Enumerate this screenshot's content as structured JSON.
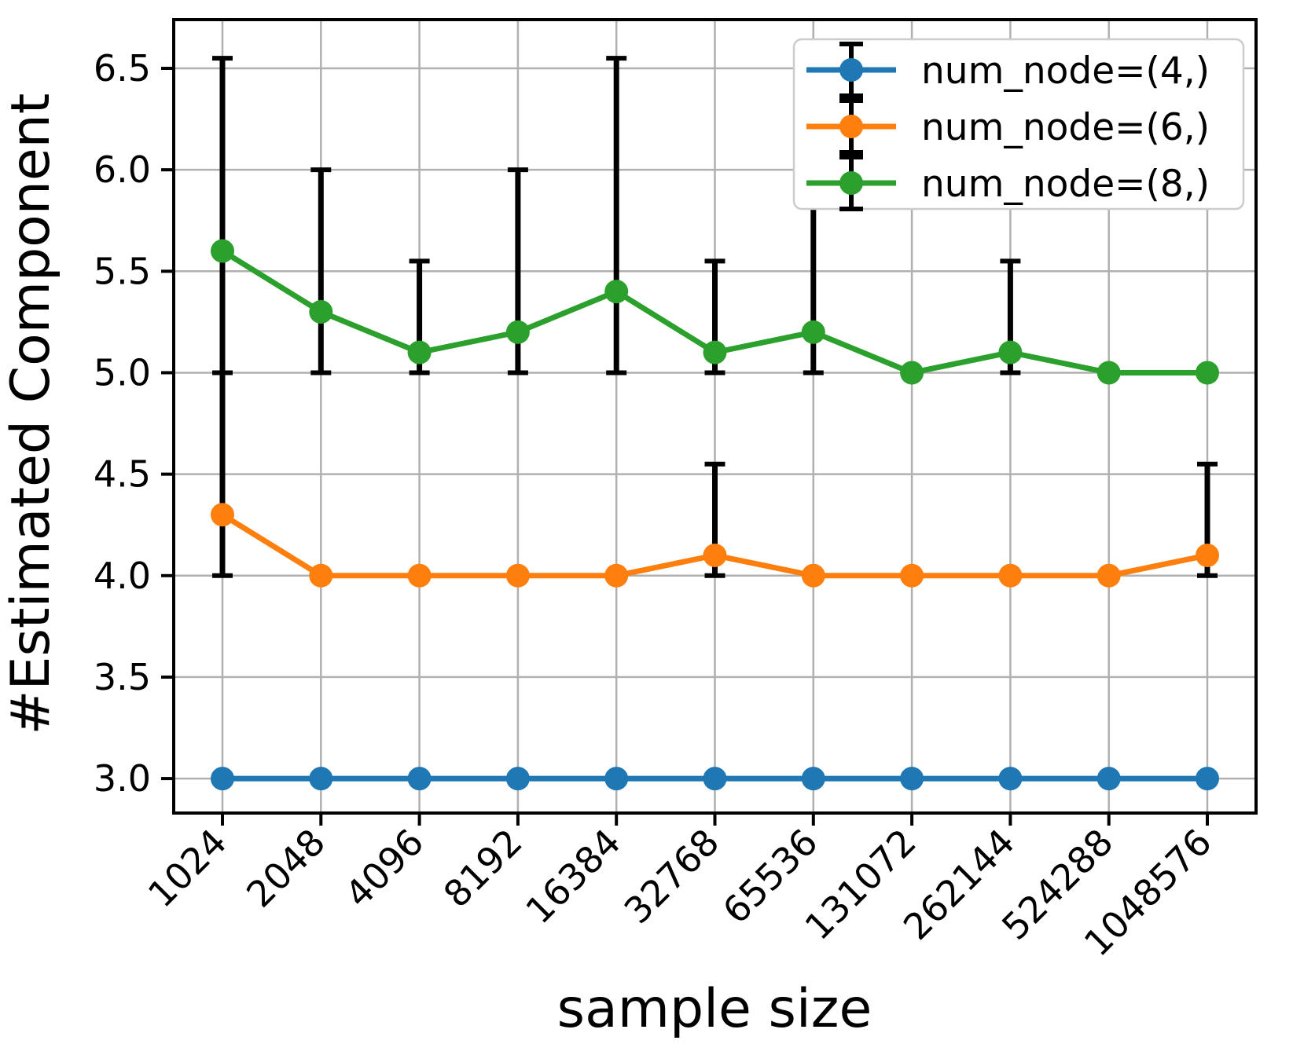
{
  "figure": {
    "background": "#ffffff"
  },
  "chart_data": {
    "type": "line",
    "title": "",
    "xlabel": "sample size",
    "ylabel": "#Estimated Component",
    "categories": [
      "1024",
      "2048",
      "4096",
      "8192",
      "16384",
      "32768",
      "65536",
      "131072",
      "262144",
      "524288",
      "1048576"
    ],
    "y_tick_labels": [
      "3.0",
      "3.5",
      "4.0",
      "4.5",
      "5.0",
      "5.5",
      "6.0",
      "6.5"
    ],
    "ylim": [
      2.83,
      6.74
    ],
    "grid": true,
    "grid_color": "#b0b0b0",
    "spine_color": "#000000",
    "error_bar_color": "#000000",
    "legend": {
      "position": "upper right",
      "background": "#ffffff",
      "border_color": "#cccccc"
    },
    "series": [
      {
        "name": "num_node=(4,)",
        "color": "#1f77b4",
        "values": [
          3.0,
          3.0,
          3.0,
          3.0,
          3.0,
          3.0,
          3.0,
          3.0,
          3.0,
          3.0,
          3.0
        ],
        "error_bars": [
          null,
          null,
          null,
          null,
          null,
          null,
          null,
          null,
          null,
          null,
          null
        ]
      },
      {
        "name": "num_node=(6,)",
        "color": "#ff7f0e",
        "values": [
          4.3,
          4.0,
          4.0,
          4.0,
          4.0,
          4.1,
          4.0,
          4.0,
          4.0,
          4.0,
          4.1
        ],
        "error_bars": [
          [
            4.0,
            5.0
          ],
          null,
          null,
          null,
          null,
          [
            4.0,
            4.55
          ],
          null,
          null,
          null,
          null,
          [
            4.0,
            4.55
          ]
        ]
      },
      {
        "name": "num_node=(8,)",
        "color": "#2ca02c",
        "values": [
          5.6,
          5.3,
          5.1,
          5.2,
          5.4,
          5.1,
          5.2,
          5.0,
          5.1,
          5.0,
          5.0
        ],
        "error_bars": [
          [
            5.0,
            6.55
          ],
          [
            5.0,
            6.0
          ],
          [
            5.0,
            5.55
          ],
          [
            5.0,
            6.0
          ],
          [
            5.0,
            6.55
          ],
          [
            5.0,
            5.55
          ],
          [
            5.0,
            6.0
          ],
          null,
          [
            5.0,
            5.55
          ],
          null,
          null
        ]
      }
    ]
  }
}
